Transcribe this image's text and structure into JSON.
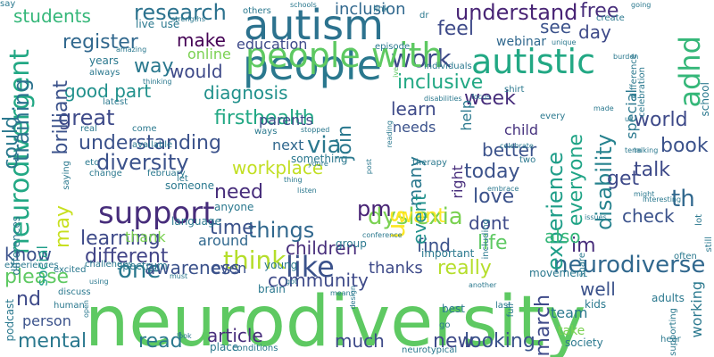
{
  "word_cloud": {
    "palette": [
      "#440154",
      "#3b528b",
      "#21918c",
      "#5ec962",
      "#fde725"
    ],
    "words": [
      {
        "text": "neurodiversity",
        "color": "#5ec962"
      },
      {
        "text": "people",
        "color": "#2a788e"
      },
      {
        "text": "autism",
        "color": "#2c728e"
      },
      {
        "text": "autistic",
        "color": "#22a884"
      },
      {
        "text": "neurodivergent",
        "color": "#22a884"
      },
      {
        "text": "adhd",
        "color": "#35b779"
      },
      {
        "text": "support",
        "color": "#472d7b"
      },
      {
        "text": "like",
        "color": "#3b528b"
      },
      {
        "text": "think",
        "color": "#b5de2b"
      },
      {
        "text": "dyslexia",
        "color": "#7ad151"
      },
      {
        "text": "neurodiverse",
        "color": "#31688e"
      },
      {
        "text": "us",
        "color": "#fde725"
      },
      {
        "text": "research",
        "color": "#2c728e"
      },
      {
        "text": "understand",
        "color": "#482475"
      },
      {
        "text": "work",
        "color": "#3e4a89"
      },
      {
        "text": "diversity",
        "color": "#3b528b"
      },
      {
        "text": "training",
        "color": "#2c728e"
      },
      {
        "text": "could",
        "color": "#2a788e"
      },
      {
        "text": "disability",
        "color": "#26828e"
      },
      {
        "text": "experience",
        "color": "#1f9e89"
      },
      {
        "text": "everyone",
        "color": "#20a486"
      },
      {
        "text": "learning",
        "color": "#3e4a89"
      },
      {
        "text": "people with",
        "color": "#5ec962"
      },
      {
        "text": "firsthealth",
        "color": "#22a884"
      },
      {
        "text": "understanding",
        "color": "#3b528b"
      },
      {
        "text": "workplace",
        "color": "#c2df23"
      },
      {
        "text": "children",
        "color": "#472d7b"
      },
      {
        "text": "different",
        "color": "#414487"
      },
      {
        "text": "things",
        "color": "#31688e"
      },
      {
        "text": "time",
        "color": "#3b528b"
      },
      {
        "text": "world",
        "color": "#3e4a89"
      },
      {
        "text": "really",
        "color": "#b5de2b"
      },
      {
        "text": "one",
        "color": "#2a788e"
      },
      {
        "text": "talk",
        "color": "#3e4a89"
      },
      {
        "text": "book",
        "color": "#3b528b"
      },
      {
        "text": "join",
        "color": "#2a788e"
      },
      {
        "text": "may",
        "color": "#c8e020"
      },
      {
        "text": "inclusive",
        "color": "#22a884"
      },
      {
        "text": "great",
        "color": "#3e4a89"
      },
      {
        "text": "make",
        "color": "#440154"
      },
      {
        "text": "would",
        "color": "#3e4a89"
      },
      {
        "text": "good part",
        "color": "#21918c"
      },
      {
        "text": "free",
        "color": "#472d7b"
      },
      {
        "text": "feel",
        "color": "#3e4a89"
      },
      {
        "text": "day",
        "color": "#3e4a89"
      },
      {
        "text": "see",
        "color": "#3b528b"
      },
      {
        "text": "way",
        "color": "#2a788e"
      },
      {
        "text": "register",
        "color": "#31688e"
      },
      {
        "text": "students",
        "color": "#35b779"
      },
      {
        "text": "inclusion",
        "color": "#31688e"
      },
      {
        "text": "education",
        "color": "#3e4a89"
      },
      {
        "text": "online",
        "color": "#7ad151"
      },
      {
        "text": "webinar",
        "color": "#31688e"
      },
      {
        "text": "week",
        "color": "#472d7b"
      },
      {
        "text": "learn",
        "color": "#3e4a89"
      },
      {
        "text": "diagnosis",
        "color": "#21918c"
      },
      {
        "text": "ive",
        "color": "#5ec962"
      },
      {
        "text": "parents",
        "color": "#3e4a89"
      },
      {
        "text": "needs",
        "color": "#3b528b"
      },
      {
        "text": "child",
        "color": "#46327e"
      },
      {
        "text": "better",
        "color": "#3b528b"
      },
      {
        "text": "via",
        "color": "#2a788e"
      },
      {
        "text": "next",
        "color": "#31688e"
      },
      {
        "text": "need",
        "color": "#472d7b"
      },
      {
        "text": "pm",
        "color": "#482475"
      },
      {
        "text": "today",
        "color": "#3b528b"
      },
      {
        "text": "love",
        "color": "#3b528b"
      },
      {
        "text": "get",
        "color": "#3e4a89"
      },
      {
        "text": "th",
        "color": "#31688e"
      },
      {
        "text": "check",
        "color": "#3b528b"
      },
      {
        "text": "want",
        "color": "#fde725"
      },
      {
        "text": "dont",
        "color": "#3e4a89"
      },
      {
        "text": "find",
        "color": "#3b528b"
      },
      {
        "text": "life",
        "color": "#5ec962"
      },
      {
        "text": "im",
        "color": "#472d7b"
      },
      {
        "text": "also",
        "color": "#35b779"
      },
      {
        "text": "many",
        "color": "#2a788e"
      },
      {
        "text": "know",
        "color": "#3b528b"
      },
      {
        "text": "thank",
        "color": "#7ad151"
      },
      {
        "text": "around",
        "color": "#31688e"
      },
      {
        "text": "please",
        "color": "#5ec962"
      },
      {
        "text": "awareness",
        "color": "#3b528b"
      },
      {
        "text": "community",
        "color": "#3e4a89"
      },
      {
        "text": "thanks",
        "color": "#3e4a89"
      },
      {
        "text": "well",
        "color": "#3b528b"
      },
      {
        "text": "read",
        "color": "#2a788e"
      },
      {
        "text": "much",
        "color": "#3e4a89"
      },
      {
        "text": "article",
        "color": "#472d7b"
      },
      {
        "text": "mental",
        "color": "#2a788e"
      },
      {
        "text": "nd",
        "color": "#3e4a89"
      },
      {
        "text": "looking",
        "color": "#3b528b"
      },
      {
        "text": "new",
        "color": "#3e4a89"
      },
      {
        "text": "march",
        "color": "#3e4a89"
      },
      {
        "text": "team",
        "color": "#2a788e"
      },
      {
        "text": "take",
        "color": "#7ad151"
      },
      {
        "text": "working",
        "color": "#2a788e"
      },
      {
        "text": "event",
        "color": "#21918c"
      },
      {
        "text": "right",
        "color": "#472d7b"
      },
      {
        "text": "help",
        "color": "#2a788e"
      },
      {
        "text": "social",
        "color": "#1f9e89"
      },
      {
        "text": "brilliant",
        "color": "#3b528b"
      },
      {
        "text": "even",
        "color": "#3b528b"
      },
      {
        "text": "person",
        "color": "#3b528b"
      },
      {
        "text": "special",
        "color": "#2a788e"
      },
      {
        "text": "school",
        "color": "#2a788e"
      },
      {
        "text": "difference",
        "color": "#2a788e"
      },
      {
        "text": "celebration",
        "color": "#2a788e"
      },
      {
        "text": "kids",
        "color": "#2a788e"
      },
      {
        "text": "society",
        "color": "#2a788e"
      },
      {
        "text": "adults",
        "color": "#2a788e"
      },
      {
        "text": "movement",
        "color": "#2a788e"
      },
      {
        "text": "supporting",
        "color": "#2a788e"
      },
      {
        "text": "share",
        "color": "#2a788e"
      },
      {
        "text": "hear",
        "color": "#2a788e"
      },
      {
        "text": "lot",
        "color": "#2a788e"
      },
      {
        "text": "still",
        "color": "#2a788e"
      },
      {
        "text": "often",
        "color": "#2a788e"
      },
      {
        "text": "best",
        "color": "#2a788e"
      },
      {
        "text": "go",
        "color": "#2a788e"
      },
      {
        "text": "last",
        "color": "#2a788e"
      },
      {
        "text": "two",
        "color": "#2a788e"
      },
      {
        "text": "full",
        "color": "#2a788e"
      },
      {
        "text": "including",
        "color": "#2a788e"
      },
      {
        "text": "important",
        "color": "#2a788e"
      },
      {
        "text": "group",
        "color": "#2a788e"
      },
      {
        "text": "language",
        "color": "#2a788e"
      },
      {
        "text": "spectrum",
        "color": "#2a788e"
      },
      {
        "text": "saying",
        "color": "#2a788e"
      },
      {
        "text": "change",
        "color": "#2a788e"
      },
      {
        "text": "february",
        "color": "#2a788e"
      },
      {
        "text": "someone",
        "color": "#2a788e"
      },
      {
        "text": "anyone",
        "color": "#2a788e"
      },
      {
        "text": "young",
        "color": "#2a788e"
      },
      {
        "text": "brain",
        "color": "#2a788e"
      },
      {
        "text": "podcast",
        "color": "#2a788e"
      },
      {
        "text": "differences",
        "color": "#2a788e"
      },
      {
        "text": "experiences",
        "color": "#2a788e"
      },
      {
        "text": "challenges",
        "color": "#2a788e"
      },
      {
        "text": "excited",
        "color": "#2a788e"
      },
      {
        "text": "discuss",
        "color": "#2a788e"
      },
      {
        "text": "using",
        "color": "#2a788e"
      },
      {
        "text": "must",
        "color": "#2a788e"
      },
      {
        "text": "human",
        "color": "#2a788e"
      },
      {
        "text": "open",
        "color": "#2a788e"
      },
      {
        "text": "place",
        "color": "#2a788e"
      },
      {
        "text": "look",
        "color": "#2a788e"
      },
      {
        "text": "conditions",
        "color": "#2a788e"
      },
      {
        "text": "neurotypical",
        "color": "#2a788e"
      },
      {
        "text": "design",
        "color": "#2a788e"
      },
      {
        "text": "means",
        "color": "#2a788e"
      },
      {
        "text": "got",
        "color": "#2a788e"
      },
      {
        "text": "another",
        "color": "#2a788e"
      },
      {
        "text": "others",
        "color": "#2a788e"
      },
      {
        "text": "schools",
        "color": "#2a788e"
      },
      {
        "text": "link",
        "color": "#2a788e"
      },
      {
        "text": "dr",
        "color": "#2a788e"
      },
      {
        "text": "live",
        "color": "#2a788e"
      },
      {
        "text": "use",
        "color": "#2a788e"
      },
      {
        "text": "strengths",
        "color": "#2a788e"
      },
      {
        "text": "episode",
        "color": "#2a788e"
      },
      {
        "text": "years",
        "color": "#2a788e"
      },
      {
        "text": "always",
        "color": "#2a788e"
      },
      {
        "text": "amazing",
        "color": "#2a788e"
      },
      {
        "text": "individuals",
        "color": "#2a788e"
      },
      {
        "text": "thinking",
        "color": "#2a788e"
      },
      {
        "text": "latest",
        "color": "#2a788e"
      },
      {
        "text": "shirt",
        "color": "#2a788e"
      },
      {
        "text": "disabilities",
        "color": "#2a788e"
      },
      {
        "text": "focus",
        "color": "#2a788e"
      },
      {
        "text": "unique",
        "color": "#2a788e"
      },
      {
        "text": "create",
        "color": "#2a788e"
      },
      {
        "text": "burden",
        "color": "#2a788e"
      },
      {
        "text": "going",
        "color": "#2a788e"
      },
      {
        "text": "made",
        "color": "#2a788e"
      },
      {
        "text": "every",
        "color": "#2a788e"
      },
      {
        "text": "uk",
        "color": "#2a788e"
      },
      {
        "text": "term",
        "color": "#2a788e"
      },
      {
        "text": "talking",
        "color": "#2a788e"
      },
      {
        "text": "celebrate",
        "color": "#2a788e"
      },
      {
        "text": "real",
        "color": "#2a788e"
      },
      {
        "text": "come",
        "color": "#2a788e"
      },
      {
        "text": "available",
        "color": "#2a788e"
      },
      {
        "text": "ways",
        "color": "#2a788e"
      },
      {
        "text": "stopped",
        "color": "#2a788e"
      },
      {
        "text": "something",
        "color": "#2a788e"
      },
      {
        "text": "etc",
        "color": "#2a788e"
      },
      {
        "text": "let",
        "color": "#2a788e"
      },
      {
        "text": "thing",
        "color": "#2a788e"
      },
      {
        "text": "youre",
        "color": "#2a788e"
      },
      {
        "text": "reading",
        "color": "#2a788e"
      },
      {
        "text": "therapy",
        "color": "#2a788e"
      },
      {
        "text": "post",
        "color": "#2a788e"
      },
      {
        "text": "listen",
        "color": "#2a788e"
      },
      {
        "text": "embrace",
        "color": "#2a788e"
      },
      {
        "text": "might",
        "color": "#2a788e"
      },
      {
        "text": "conference",
        "color": "#2a788e"
      },
      {
        "text": "issues",
        "color": "#2a788e"
      },
      {
        "text": "interesting",
        "color": "#2a788e"
      },
      {
        "text": "say",
        "color": "#2a788e"
      }
    ]
  }
}
